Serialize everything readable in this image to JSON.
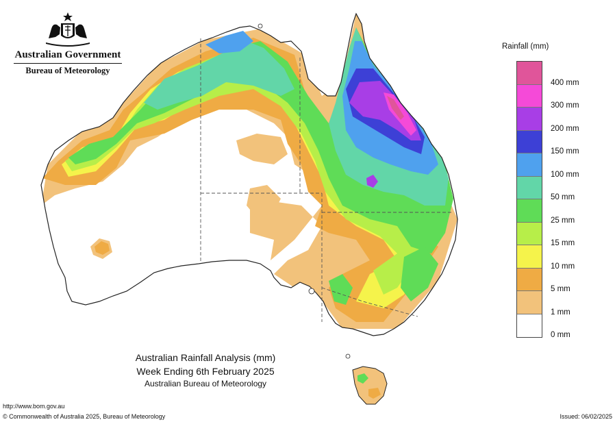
{
  "header": {
    "government": "Australian Government",
    "agency": "Bureau of Meteorology"
  },
  "legend": {
    "title": "Rainfall (mm)",
    "items": [
      {
        "label": "",
        "color": "#e0559a"
      },
      {
        "label": "400 mm",
        "color": "#f54ad8"
      },
      {
        "label": "300 mm",
        "color": "#a83ee6"
      },
      {
        "label": "200 mm",
        "color": "#3d40d6"
      },
      {
        "label": "150 mm",
        "color": "#4fa1ee"
      },
      {
        "label": "100 mm",
        "color": "#62d6a8"
      },
      {
        "label": "50 mm",
        "color": "#5fdc57"
      },
      {
        "label": "25 mm",
        "color": "#b7ee49"
      },
      {
        "label": "15 mm",
        "color": "#f5f34b"
      },
      {
        "label": "10 mm",
        "color": "#efab44"
      },
      {
        "label": "5 mm",
        "color": "#f2c27b"
      },
      {
        "label": "1 mm",
        "color": "#ffffff"
      },
      {
        "label": "0 mm",
        "color": ""
      }
    ]
  },
  "map": {
    "title": "Australian Rainfall Analysis (mm)",
    "subtitle": "Week Ending 6th February 2025",
    "agency": "Australian Bureau of Meteorology"
  },
  "footer": {
    "url": "http://www.bom.gov.au",
    "copyright": "© Commonwealth of Australia 2025, Bureau of Meteorology",
    "issued": "Issued: 06/02/2025"
  }
}
